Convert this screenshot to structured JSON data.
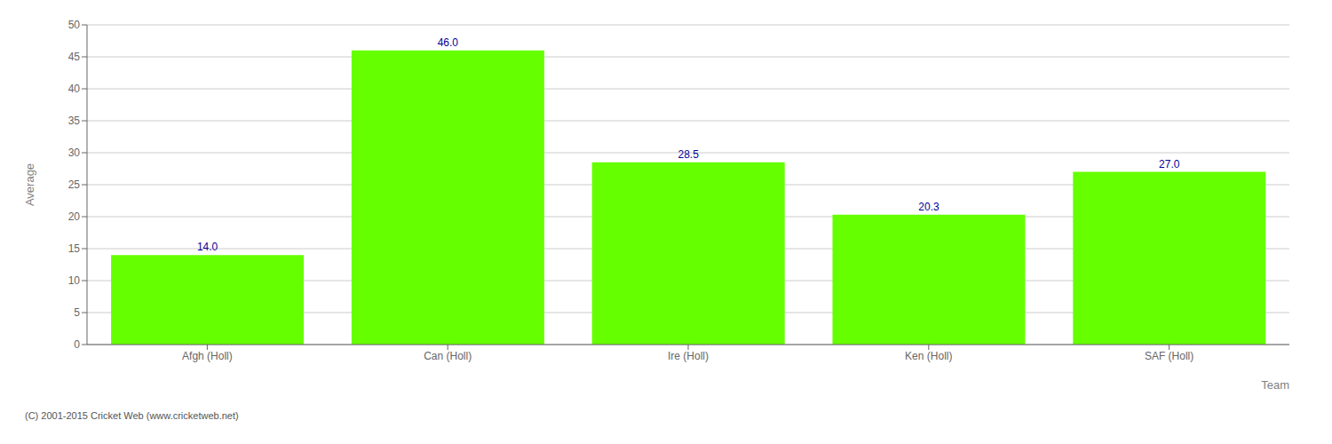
{
  "chart_data": {
    "type": "bar",
    "xlabel": "Team",
    "ylabel": "Average",
    "categories": [
      "Afgh (Holl)",
      "Can (Holl)",
      "Ire (Holl)",
      "Ken (Holl)",
      "SAF (Holl)"
    ],
    "values": [
      14.0,
      46.0,
      28.5,
      20.3,
      27.0
    ],
    "value_labels": [
      "14.0",
      "46.0",
      "28.5",
      "20.3",
      "27.0"
    ],
    "data_labels": true,
    "color": "#66ff00",
    "ylim": [
      0,
      50
    ],
    "yticks": [
      0,
      5,
      10,
      15,
      20,
      25,
      30,
      35,
      40,
      45,
      50
    ],
    "grid": true,
    "annotations": [
      "(C) 2001-2015 Cricket Web (www.cricketweb.net)"
    ]
  }
}
